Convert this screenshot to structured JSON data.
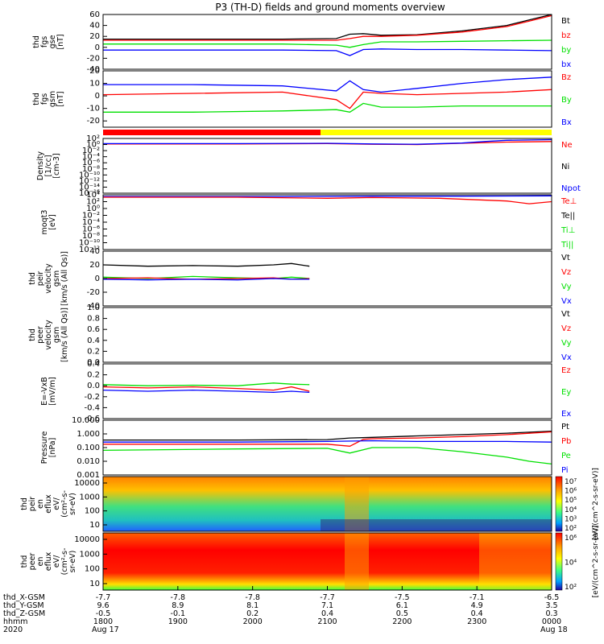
{
  "title": "P3 (TH-D) fields and ground moments overview",
  "colors": {
    "black": "#000000",
    "red": "#ff0000",
    "green": "#00e000",
    "blue": "#0000ff",
    "yellow": "#ffff00"
  },
  "chart_data": [
    {
      "id": "fgs_gse",
      "type": "line",
      "ylabel": [
        "thd",
        "fgs",
        "gse",
        "[nT]"
      ],
      "ylim": [
        -40,
        60
      ],
      "yticks": [
        "60",
        "40",
        "20",
        "0",
        "-20",
        "-40"
      ],
      "ytick_values": [
        60,
        40,
        20,
        0,
        -20,
        -40
      ],
      "legend": [
        {
          "label": "Bt",
          "color": "#000000"
        },
        {
          "label": "bz",
          "color": "#ff0000"
        },
        {
          "label": "by",
          "color": "#00e000"
        },
        {
          "label": "bx",
          "color": "#0000ff"
        }
      ],
      "series": [
        {
          "name": "Bt",
          "color": "#000000",
          "x": [
            0,
            0.2,
            0.4,
            0.52,
            0.55,
            0.58,
            0.62,
            0.7,
            0.8,
            0.9,
            0.95,
            1
          ],
          "values": [
            15,
            15,
            15,
            16,
            24,
            25,
            22,
            23,
            30,
            40,
            50,
            60
          ]
        },
        {
          "name": "bz",
          "color": "#ff0000",
          "x": [
            0,
            0.2,
            0.4,
            0.52,
            0.55,
            0.58,
            0.62,
            0.7,
            0.8,
            0.9,
            0.95,
            1
          ],
          "values": [
            13,
            13,
            13,
            13,
            16,
            20,
            20,
            22,
            28,
            38,
            48,
            58
          ]
        },
        {
          "name": "by",
          "color": "#00e000",
          "x": [
            0,
            0.2,
            0.4,
            0.52,
            0.55,
            0.58,
            0.62,
            0.7,
            0.8,
            0.9,
            1
          ],
          "values": [
            6,
            6,
            6,
            4,
            0,
            5,
            10,
            10,
            11,
            12,
            13
          ]
        },
        {
          "name": "bx",
          "color": "#0000ff",
          "x": [
            0,
            0.2,
            0.4,
            0.52,
            0.55,
            0.58,
            0.62,
            0.7,
            0.8,
            0.9,
            1
          ],
          "values": [
            -5,
            -5,
            -5,
            -6,
            -15,
            -4,
            -3,
            -4,
            -4,
            -5,
            -6
          ]
        }
      ]
    },
    {
      "id": "fgs_gsm",
      "type": "line",
      "ylabel": [
        "thd",
        "fgs",
        "gsm",
        "[nT]"
      ],
      "ylim": [
        -25,
        20
      ],
      "yticks": [
        "20",
        "10",
        "0",
        "-10",
        "-20"
      ],
      "ytick_values": [
        20,
        10,
        0,
        -10,
        -20
      ],
      "legend": [
        {
          "label": "Bz",
          "color": "#ff0000"
        },
        {
          "label": "By",
          "color": "#00e000"
        },
        {
          "label": "Bx",
          "color": "#0000ff"
        }
      ],
      "series": [
        {
          "name": "Bz",
          "color": "#ff0000",
          "x": [
            0,
            0.2,
            0.4,
            0.52,
            0.55,
            0.58,
            0.62,
            0.7,
            0.8,
            0.9,
            1
          ],
          "values": [
            1,
            2,
            3,
            -3,
            -10,
            3,
            2,
            1,
            2,
            3,
            5
          ]
        },
        {
          "name": "By",
          "color": "#00e000",
          "x": [
            0,
            0.2,
            0.4,
            0.52,
            0.55,
            0.58,
            0.62,
            0.7,
            0.8,
            0.9,
            1
          ],
          "values": [
            -13,
            -13,
            -12,
            -11,
            -13,
            -6,
            -9,
            -9,
            -8,
            -8,
            -8
          ]
        },
        {
          "name": "Bx",
          "color": "#0000ff",
          "x": [
            0,
            0.2,
            0.4,
            0.52,
            0.55,
            0.58,
            0.62,
            0.7,
            0.8,
            0.9,
            1
          ],
          "values": [
            9,
            9,
            8,
            4,
            12,
            5,
            3,
            6,
            10,
            13,
            15
          ]
        }
      ]
    },
    {
      "id": "density",
      "type": "line",
      "ylabel": [
        "Density",
        "[1/cc]",
        "[cm-3]"
      ],
      "ylim": [
        -16,
        2
      ],
      "log": true,
      "yticks": [
        "10²",
        "10⁰",
        "10⁻²",
        "10⁻⁴",
        "10⁻⁶",
        "10⁻⁸",
        "10⁻¹⁰",
        "10⁻¹²",
        "10⁻¹⁴",
        "10⁻¹⁶"
      ],
      "ytick_values": [
        2,
        0,
        -2,
        -4,
        -6,
        -8,
        -10,
        -12,
        -14,
        -16
      ],
      "legend": [
        {
          "label": "Ne",
          "color": "#ff0000"
        },
        {
          "label": "Ni",
          "color": "#000000"
        },
        {
          "label": "Npot",
          "color": "#0000ff"
        }
      ],
      "series": [
        {
          "name": "Ne",
          "color": "#ff0000",
          "x": [
            0,
            0.3,
            0.5,
            0.6,
            0.7,
            0.8,
            0.9,
            1
          ],
          "values": [
            0.2,
            0.2,
            0.3,
            0.1,
            0.0,
            0.4,
            0.8,
            1.0
          ]
        },
        {
          "name": "Npot",
          "color": "#0000ff",
          "x": [
            0,
            0.3,
            0.5,
            0.6,
            0.7,
            0.8,
            0.85,
            0.9,
            1
          ],
          "values": [
            0.3,
            0.3,
            0.4,
            0.2,
            0.1,
            0.5,
            1.0,
            1.4,
            1.6
          ]
        }
      ]
    },
    {
      "id": "temperature",
      "type": "line",
      "ylabel": [
        "moqt3",
        "[eV]"
      ],
      "ylim": [
        -12,
        4
      ],
      "log": true,
      "yticks": [
        "10⁴",
        "10²",
        "10⁰",
        "10⁻²",
        "10⁻⁴",
        "10⁻⁶",
        "10⁻⁸",
        "10⁻¹⁰",
        "10⁻¹²"
      ],
      "ytick_values": [
        4,
        2,
        0,
        -2,
        -4,
        -6,
        -8,
        -10,
        -12
      ],
      "legend": [
        {
          "label": "Te⊥",
          "color": "#ff0000"
        },
        {
          "label": "Te||",
          "color": "#000000"
        },
        {
          "label": "Ti⊥",
          "color": "#00e000"
        },
        {
          "label": "Ti||",
          "color": "#00e000"
        }
      ],
      "series": [
        {
          "name": "Ti",
          "color": "#0000ff",
          "x": [
            0,
            0.4,
            0.6,
            0.8,
            1
          ],
          "values": [
            3.5,
            3.5,
            3.6,
            3.6,
            3.7
          ]
        },
        {
          "name": "Te⊥",
          "color": "#ff0000",
          "x": [
            0,
            0.3,
            0.5,
            0.6,
            0.75,
            0.9,
            0.95,
            1
          ],
          "values": [
            3.3,
            3.3,
            3.0,
            3.2,
            3.0,
            2.2,
            1.4,
            2.0
          ]
        }
      ]
    },
    {
      "id": "peir_velocity",
      "type": "line",
      "ylabel": [
        "thd",
        "peir",
        "velocity",
        "gsm",
        "[km/s (All Qs)]"
      ],
      "ylim": [
        -40,
        40
      ],
      "yticks": [
        "40",
        "20",
        "0",
        "-20",
        "-40"
      ],
      "ytick_values": [
        40,
        20,
        0,
        -20,
        -40
      ],
      "legend": [
        {
          "label": "Vt",
          "color": "#000000"
        },
        {
          "label": "Vz",
          "color": "#ff0000"
        },
        {
          "label": "Vy",
          "color": "#00e000"
        },
        {
          "label": "Vx",
          "color": "#0000ff"
        }
      ],
      "series": [
        {
          "name": "Vt",
          "color": "#000000",
          "x": [
            0,
            0.1,
            0.2,
            0.3,
            0.38,
            0.42,
            0.46
          ],
          "values": [
            20,
            18,
            19,
            18,
            20,
            22,
            18
          ]
        },
        {
          "name": "Vy",
          "color": "#00e000",
          "x": [
            0,
            0.1,
            0.2,
            0.3,
            0.38,
            0.42,
            0.46
          ],
          "values": [
            2,
            0,
            3,
            1,
            0,
            2,
            0
          ]
        },
        {
          "name": "Vz",
          "color": "#ff0000",
          "x": [
            0,
            0.1,
            0.2,
            0.3,
            0.38,
            0.42,
            0.46
          ],
          "values": [
            0,
            1,
            -1,
            0,
            1,
            -1,
            0
          ]
        },
        {
          "name": "Vx",
          "color": "#0000ff",
          "x": [
            0,
            0.1,
            0.2,
            0.3,
            0.38,
            0.42,
            0.46
          ],
          "values": [
            -1,
            -2,
            -1,
            -2,
            0,
            -1,
            -1
          ]
        }
      ]
    },
    {
      "id": "peer_velocity",
      "type": "line",
      "ylabel": [
        "thd",
        "peer",
        "velocity",
        "gsm",
        "[km/s (All Qs)]"
      ],
      "ylim": [
        0,
        1
      ],
      "yticks": [
        "1.0",
        "0.8",
        "0.6",
        "0.4",
        "0.2",
        "0.0"
      ],
      "ytick_values": [
        1,
        0.8,
        0.6,
        0.4,
        0.2,
        0
      ],
      "legend": [
        {
          "label": "Vt",
          "color": "#000000"
        },
        {
          "label": "Vz",
          "color": "#ff0000"
        },
        {
          "label": "Vy",
          "color": "#00e000"
        },
        {
          "label": "Vx",
          "color": "#0000ff"
        }
      ],
      "series": []
    },
    {
      "id": "e_field",
      "type": "line",
      "ylabel": [
        "E=-VxB",
        "[mV/m]"
      ],
      "ylim": [
        -0.6,
        0.4
      ],
      "yticks": [
        "0.4",
        "0.2",
        "0.0",
        "-0.2",
        "-0.4",
        "-0.6"
      ],
      "ytick_values": [
        0.4,
        0.2,
        0,
        -0.2,
        -0.4,
        -0.6
      ],
      "legend": [
        {
          "label": "Ez",
          "color": "#ff0000"
        },
        {
          "label": "Ey",
          "color": "#00e000"
        },
        {
          "label": "Ex",
          "color": "#0000ff"
        }
      ],
      "series": [
        {
          "name": "Ey",
          "color": "#00e000",
          "x": [
            0,
            0.1,
            0.2,
            0.3,
            0.38,
            0.42,
            0.46
          ],
          "values": [
            0.02,
            0.0,
            0.01,
            0.0,
            0.05,
            0.03,
            0.02
          ]
        },
        {
          "name": "Ex",
          "color": "#0000ff",
          "x": [
            0,
            0.1,
            0.2,
            0.3,
            0.38,
            0.42,
            0.46
          ],
          "values": [
            -0.08,
            -0.1,
            -0.08,
            -0.1,
            -0.12,
            -0.1,
            -0.12
          ]
        },
        {
          "name": "Ez",
          "color": "#ff0000",
          "x": [
            0,
            0.1,
            0.2,
            0.3,
            0.38,
            0.42,
            0.46
          ],
          "values": [
            -0.02,
            -0.04,
            -0.02,
            -0.05,
            -0.08,
            -0.02,
            -0.1
          ]
        }
      ]
    },
    {
      "id": "pressure",
      "type": "line",
      "ylabel": [
        "Pressure",
        "[nPa]"
      ],
      "ylim": [
        -3,
        1
      ],
      "log": true,
      "yticks": [
        "10.000",
        "1.000",
        "0.100",
        "0.010",
        "0.001"
      ],
      "ytick_values": [
        1,
        0,
        -1,
        -2,
        -3
      ],
      "legend": [
        {
          "label": "Pt",
          "color": "#000000"
        },
        {
          "label": "Pb",
          "color": "#ff0000"
        },
        {
          "label": "Pe",
          "color": "#00e000"
        },
        {
          "label": "Pi",
          "color": "#0000ff"
        }
      ],
      "series": [
        {
          "name": "Pt",
          "color": "#000000",
          "x": [
            0,
            0.3,
            0.5,
            0.55,
            0.6,
            0.7,
            0.8,
            0.9,
            1
          ],
          "values": [
            -0.45,
            -0.45,
            -0.42,
            -0.3,
            -0.25,
            -0.15,
            -0.05,
            0.05,
            0.2
          ]
        },
        {
          "name": "Pb",
          "color": "#ff0000",
          "x": [
            0,
            0.3,
            0.5,
            0.55,
            0.58,
            0.6,
            0.7,
            0.8,
            0.9,
            1
          ],
          "values": [
            -0.75,
            -0.75,
            -0.75,
            -0.9,
            -0.4,
            -0.35,
            -0.3,
            -0.2,
            -0.05,
            0.15
          ]
        },
        {
          "name": "Pi",
          "color": "#0000ff",
          "x": [
            0,
            0.3,
            0.5,
            0.6,
            0.7,
            0.8,
            0.9,
            1
          ],
          "values": [
            -0.6,
            -0.6,
            -0.55,
            -0.5,
            -0.55,
            -0.55,
            -0.55,
            -0.6
          ]
        },
        {
          "name": "Pe",
          "color": "#00e000",
          "x": [
            0,
            0.3,
            0.5,
            0.55,
            0.6,
            0.7,
            0.8,
            0.9,
            0.95,
            1
          ],
          "values": [
            -1.2,
            -1.1,
            -1.05,
            -1.4,
            -1.0,
            -1.0,
            -1.3,
            -1.7,
            -2.0,
            -2.2
          ]
        }
      ]
    },
    {
      "id": "peir_eflux",
      "type": "heatmap",
      "ylabel": [
        "thd",
        "peir",
        "en",
        "eflux",
        "eV/",
        "(cm²-s-",
        "sr-eV)"
      ],
      "ylim": [
        5,
        20000
      ],
      "yticks": [
        "10000",
        "1000",
        "100",
        "10"
      ],
      "colorbar": {
        "label": "[eV/(cm^2-s-sr-eV)]",
        "ticks": [
          "10⁷",
          "10⁶",
          "10⁵",
          "10⁴",
          "10³",
          "10²"
        ]
      }
    },
    {
      "id": "peer_eflux",
      "type": "heatmap",
      "ylabel": [
        "thd",
        "peer",
        "en",
        "eflux",
        "eV/",
        "(cm²-s-",
        "sr-eV)"
      ],
      "ylim": [
        5,
        20000
      ],
      "yticks": [
        "10000",
        "1000",
        "100",
        "10"
      ],
      "colorbar": {
        "label": "[eV/(cm^2-s-sr-eV)]",
        "ticks": [
          "10⁶",
          "10⁴",
          "10²"
        ]
      }
    }
  ],
  "xaxis": {
    "rows": [
      {
        "label": "thd_X-GSM",
        "values": [
          "-7.7",
          "-7.8",
          "-7.8",
          "-7.7",
          "-7.5",
          "-7.1",
          "-6.5"
        ]
      },
      {
        "label": "thd_Y-GSM",
        "values": [
          "9.6",
          "8.9",
          "8.1",
          "7.1",
          "6.1",
          "4.9",
          "3.5"
        ]
      },
      {
        "label": "thd_Z-GSM",
        "values": [
          "-0.5",
          "-0.1",
          "0.2",
          "0.4",
          "0.5",
          "0.4",
          "0.3"
        ]
      },
      {
        "label": "hhmm",
        "values": [
          "1800",
          "1900",
          "2000",
          "2100",
          "2200",
          "2300",
          "0000"
        ]
      }
    ],
    "year": "2020",
    "date_start": "Aug 17",
    "date_end": "Aug 18"
  }
}
